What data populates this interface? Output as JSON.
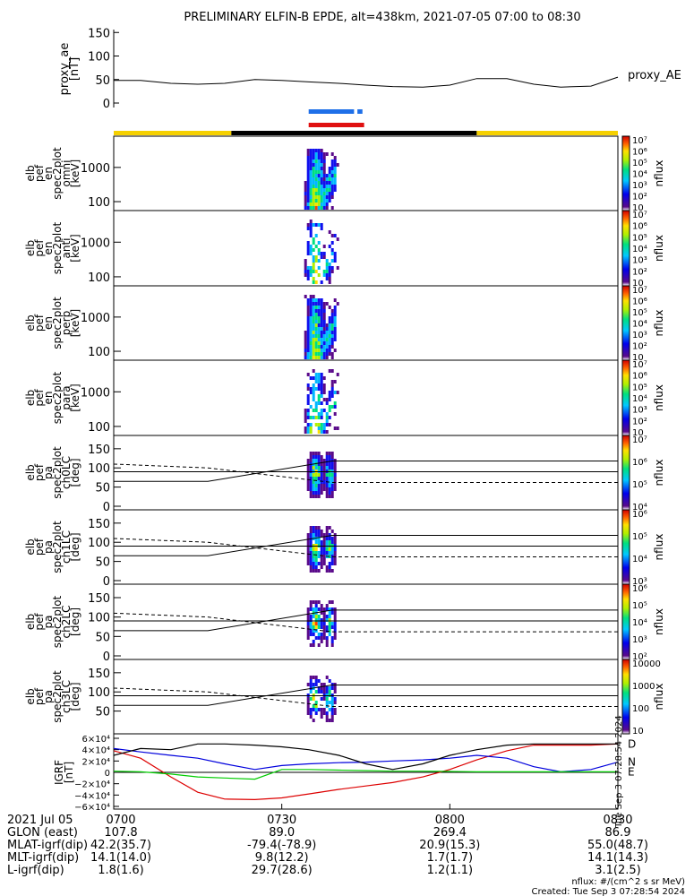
{
  "title": "PRELIMINARY ELFIN-B EPDE, alt=438km, 2021-07-05 07:00 to 08:30",
  "chart_data": [
    {
      "type": "line",
      "panel": "proxy_ae",
      "ylabel_lines": [
        "proxy_ae",
        "[nT]"
      ],
      "yticks": [
        "0",
        "50",
        "100",
        "150"
      ],
      "ylim": [
        0,
        160
      ],
      "legend": "proxy_AE",
      "x": [
        7.0,
        7.08,
        7.17,
        7.25,
        7.33,
        7.42,
        7.5,
        7.58,
        7.67,
        7.75,
        7.83,
        7.92,
        8.0,
        8.08,
        8.17,
        8.25,
        8.33,
        8.42,
        8.5
      ],
      "values": [
        48,
        48,
        42,
        40,
        42,
        50,
        48,
        45,
        42,
        38,
        35,
        34,
        38,
        52,
        52,
        40,
        34,
        36,
        55
      ]
    },
    {
      "type": "heatmap",
      "panel": "omni",
      "ylabel_lines": [
        "elb",
        "pef",
        "en",
        "spec2plot",
        "omni",
        "[keV]"
      ],
      "yticks": [
        "100",
        "1000"
      ],
      "colorbar_ticks": [
        "10",
        "10²",
        "10³",
        "10⁴",
        "10⁵",
        "10⁶",
        "10⁷"
      ],
      "colorbar_label": "nflux",
      "data_time_range": [
        "07:34",
        "07:40"
      ]
    },
    {
      "type": "heatmap",
      "panel": "anti",
      "ylabel_lines": [
        "elb",
        "pef",
        "en",
        "spec2plot",
        "anti",
        "[keV]"
      ],
      "yticks": [
        "100",
        "1000"
      ],
      "colorbar_ticks": [
        "10",
        "10²",
        "10³",
        "10⁴",
        "10⁵",
        "10⁶",
        "10⁷"
      ],
      "colorbar_label": "nflux",
      "data_time_range": [
        "07:34",
        "07:40"
      ]
    },
    {
      "type": "heatmap",
      "panel": "perp",
      "ylabel_lines": [
        "elb",
        "pef",
        "en",
        "spec2plot",
        "perp",
        "[keV]"
      ],
      "yticks": [
        "100",
        "1000"
      ],
      "colorbar_ticks": [
        "10",
        "10²",
        "10³",
        "10⁴",
        "10⁵",
        "10⁶",
        "10⁷"
      ],
      "colorbar_label": "nflux",
      "data_time_range": [
        "07:34",
        "07:40"
      ]
    },
    {
      "type": "heatmap",
      "panel": "para",
      "ylabel_lines": [
        "elb",
        "pef",
        "en",
        "spec2plot",
        "para",
        "[keV]"
      ],
      "yticks": [
        "100",
        "1000"
      ],
      "colorbar_ticks": [
        "10",
        "10²",
        "10³",
        "10⁴",
        "10⁵",
        "10⁶",
        "10⁷"
      ],
      "colorbar_label": "nflux",
      "data_time_range": [
        "07:34",
        "07:40"
      ]
    },
    {
      "type": "heatmap",
      "panel": "ch0LC",
      "ylabel_lines": [
        "elb",
        "pef",
        "pa",
        "spec2plot",
        "ch0LC",
        "[deg]"
      ],
      "yticks": [
        "0",
        "50",
        "100",
        "150"
      ],
      "ylim": [
        0,
        180
      ],
      "colorbar_ticks": [
        "10⁴",
        "10⁵",
        "10⁶",
        "10⁷"
      ],
      "colorbar_label": "nflux",
      "data_time_range": [
        "07:34",
        "07:40"
      ]
    },
    {
      "type": "heatmap",
      "panel": "ch1LC",
      "ylabel_lines": [
        "elb",
        "pef",
        "pa",
        "spec2plot",
        "ch1LC",
        "[deg]"
      ],
      "yticks": [
        "0",
        "50",
        "100",
        "150"
      ],
      "ylim": [
        0,
        180
      ],
      "colorbar_ticks": [
        "10³",
        "10⁴",
        "10⁵",
        "10⁶"
      ],
      "colorbar_label": "nflux",
      "data_time_range": [
        "07:34",
        "07:40"
      ]
    },
    {
      "type": "heatmap",
      "panel": "ch2LC",
      "ylabel_lines": [
        "elb",
        "pef",
        "pa",
        "spec2plot",
        "ch2LC",
        "[deg]"
      ],
      "yticks": [
        "0",
        "50",
        "100",
        "150"
      ],
      "ylim": [
        0,
        180
      ],
      "colorbar_ticks": [
        "10²",
        "10³",
        "10⁴",
        "10⁵",
        "10⁶"
      ],
      "colorbar_label": "nflux",
      "data_time_range": [
        "07:34",
        "07:40"
      ]
    },
    {
      "type": "heatmap",
      "panel": "ch3LC",
      "ylabel_lines": [
        "elb",
        "pef",
        "pa",
        "spec2plot",
        "ch3LC",
        "[deg]"
      ],
      "yticks": [
        "50",
        "100",
        "150"
      ],
      "ylim": [
        0,
        180
      ],
      "colorbar_ticks": [
        "10",
        "100",
        "1000",
        "10000"
      ],
      "colorbar_label": "nflux",
      "data_time_range": [
        "07:34",
        "07:40"
      ]
    },
    {
      "type": "line",
      "panel": "IGRF",
      "ylabel_lines": [
        "IGRF",
        "[nT]"
      ],
      "yticks": [
        "6×10⁴",
        "4×10⁴",
        "2×10⁴",
        "0",
        "−2×10⁴",
        "−4×10⁴",
        "−6×10⁴"
      ],
      "ylim": [
        -60000,
        60000
      ],
      "x": [
        7.0,
        7.08,
        7.17,
        7.25,
        7.33,
        7.42,
        7.5,
        7.58,
        7.67,
        7.75,
        7.83,
        7.92,
        8.0,
        8.08,
        8.17,
        8.25,
        8.33,
        8.42,
        8.5
      ],
      "series": [
        {
          "name": "D",
          "color": "#dd0000",
          "values": [
            38000,
            25000,
            -8000,
            -35000,
            -47000,
            -48000,
            -45000,
            -38000,
            -30000,
            -24000,
            -18000,
            -8000,
            5000,
            22000,
            38000,
            48000,
            48000,
            48000,
            50000
          ]
        },
        {
          "name": "N",
          "color": "#0000dd",
          "values": [
            42000,
            36000,
            30000,
            25000,
            15000,
            5000,
            12000,
            15000,
            17000,
            18000,
            20000,
            22000,
            25000,
            30000,
            25000,
            10000,
            1000,
            5000,
            18000
          ]
        },
        {
          "name": "E",
          "color": "#00cc00",
          "values": [
            2000,
            1000,
            -3000,
            -8000,
            -10000,
            -12000,
            5000,
            5000,
            4000,
            3000,
            2000,
            2000,
            1500,
            1000,
            1000,
            1000,
            1000,
            1000,
            1000
          ]
        },
        {
          "name": "",
          "color": "#000000",
          "values": [
            30000,
            42000,
            40000,
            50000,
            50000,
            48000,
            45000,
            40000,
            30000,
            15000,
            5000,
            15000,
            30000,
            40000,
            48000,
            50000,
            50000,
            50000,
            50000
          ]
        }
      ]
    }
  ],
  "side_label": "Tue Sep  3 07:28:54 2024",
  "footer": {
    "row_labels": [
      "2021 Jul 05",
      "GLON (east)",
      "MLAT-igrf(dip)",
      "MLT-igrf(dip)",
      "L-igrf(dip)"
    ],
    "columns": [
      [
        "0700",
        "107.8",
        "42.2(35.7)",
        "14.1(14.0)",
        "1.8(1.6)"
      ],
      [
        "0730",
        "89.0",
        "-79.4(-78.9)",
        "9.8(12.2)",
        "29.7(28.6)"
      ],
      [
        "0800",
        "269.4",
        "20.9(15.3)",
        "1.7(1.7)",
        "1.2(1.1)"
      ],
      [
        "0830",
        "86.9",
        "55.0(48.7)",
        "14.1(14.3)",
        "3.1(2.5)"
      ]
    ],
    "units_note": "nflux: #/(cm^2 s sr MeV)",
    "created": "Created: Tue Sep  3 07:28:54 2024"
  },
  "colors": {
    "axis": "#000000",
    "day_bar": "#f5d000",
    "night_bar": "#000000",
    "blue_bar": "#1e6fe8",
    "red_bar": "#e01010"
  }
}
